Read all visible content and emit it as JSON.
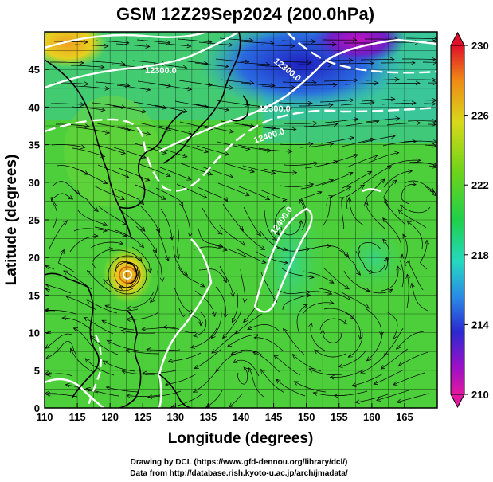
{
  "title": "GSM 12Z29Sep2024 (200.0hPa)",
  "x_axis": {
    "label": "Longitude (degrees)",
    "ticks": [
      "110",
      "115",
      "120",
      "125",
      "130",
      "135",
      "140",
      "145",
      "150",
      "155",
      "160",
      "165"
    ]
  },
  "y_axis": {
    "label": "Latitude  (degrees)",
    "ticks": [
      "0",
      "5",
      "10",
      "15",
      "20",
      "25",
      "30",
      "35",
      "40",
      "45"
    ]
  },
  "colorbar": {
    "labels": [
      "230",
      "226",
      "222",
      "218",
      "214",
      "210"
    ],
    "colors": [
      "#e0102a",
      "#f08a16",
      "#9ee01a",
      "#1fd04a",
      "#25d8c0",
      "#2a8ce6",
      "#2a2ad0",
      "#9a10c8",
      "#e01aa0"
    ]
  },
  "contour_labels": [
    "12300.0",
    "12300.0",
    "12300.0",
    "12400.0",
    "12400.0"
  ],
  "credits": {
    "line1": "Drawing by DCL (https://www.gfd-dennou.org/library/dcl/)",
    "line2": "Data from http://database.rish.kyoto-u.ac.jp/arch/jmadata/"
  },
  "map": {
    "lon_range": [
      110,
      170
    ],
    "lat_range": [
      0,
      50
    ],
    "field": "temperature at 200.0hPa",
    "overlays": [
      "geopotential height contours",
      "wind streamlines",
      "coastlines"
    ],
    "notable_features": [
      "warm core near 122E 20N",
      "cold region near 150-160E 45-50N"
    ]
  }
}
